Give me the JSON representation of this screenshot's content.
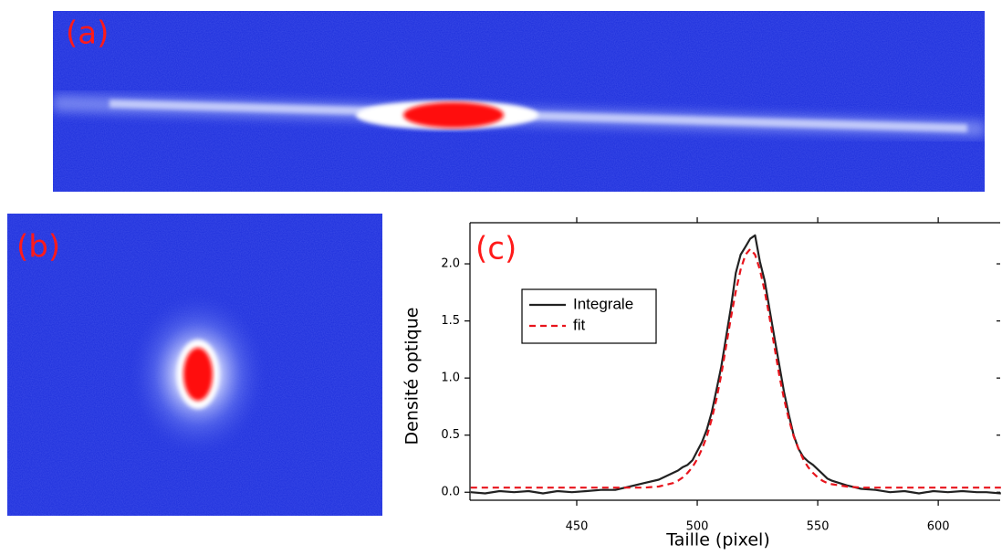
{
  "panel_labels": [
    "(a)",
    "(b)",
    "(c)"
  ],
  "chart_data": {
    "type": "line",
    "xlabel": "Taille (pixel)",
    "ylabel": "Densité optique",
    "x": [
      406,
      412,
      418,
      424,
      430,
      436,
      442,
      448,
      454,
      460,
      466,
      472,
      478,
      484,
      490,
      492,
      494,
      496,
      498,
      500,
      502,
      504,
      506,
      508,
      510,
      512,
      514,
      516,
      518,
      520,
      522,
      524,
      526,
      528,
      530,
      532,
      534,
      536,
      538,
      540,
      542,
      544,
      546,
      548,
      550,
      552,
      554,
      556,
      562,
      568,
      574,
      580,
      586,
      592,
      598,
      604,
      610,
      616,
      620,
      626
    ],
    "series": [
      {
        "name": "Integrale",
        "color": "#222222",
        "style": "solid",
        "values": [
          0,
          -0.01,
          0.01,
          0,
          0.01,
          -0.01,
          0.01,
          0,
          0.01,
          0.02,
          0.02,
          0.05,
          0.08,
          0.11,
          0.17,
          0.19,
          0.22,
          0.24,
          0.28,
          0.36,
          0.44,
          0.55,
          0.7,
          0.9,
          1.1,
          1.36,
          1.62,
          1.92,
          2.08,
          2.15,
          2.22,
          2.25,
          2.02,
          1.85,
          1.6,
          1.36,
          1.12,
          0.88,
          0.68,
          0.5,
          0.38,
          0.31,
          0.27,
          0.24,
          0.2,
          0.16,
          0.12,
          0.1,
          0.06,
          0.03,
          0.02,
          0,
          0.01,
          -0.01,
          0.01,
          0,
          0.01,
          0,
          0,
          -0.01
        ]
      },
      {
        "name": "fit",
        "color": "#e8141c",
        "style": "dashed",
        "values": [
          0.04,
          0.04,
          0.04,
          0.04,
          0.04,
          0.04,
          0.04,
          0.04,
          0.04,
          0.04,
          0.04,
          0.04,
          0.04,
          0.05,
          0.08,
          0.1,
          0.13,
          0.17,
          0.22,
          0.29,
          0.38,
          0.49,
          0.64,
          0.82,
          1.03,
          1.28,
          1.53,
          1.76,
          1.95,
          2.08,
          2.13,
          2.08,
          1.95,
          1.76,
          1.53,
          1.28,
          1.03,
          0.82,
          0.64,
          0.49,
          0.38,
          0.29,
          0.22,
          0.17,
          0.13,
          0.1,
          0.08,
          0.07,
          0.05,
          0.04,
          0.04,
          0.04,
          0.04,
          0.04,
          0.04,
          0.04,
          0.04,
          0.04,
          0.04,
          0.04
        ]
      }
    ],
    "xlim": [
      405.7,
      625.7
    ],
    "ylim": [
      -0.07,
      2.36
    ],
    "xticks": [
      450,
      500,
      550,
      600
    ],
    "yticks": [
      {
        "value": 0,
        "label": "0.0"
      },
      0.5,
      {
        "value": 1,
        "label": "1.0"
      },
      1.5,
      {
        "value": 2,
        "label": "2.0"
      }
    ],
    "legend": "upper left"
  }
}
